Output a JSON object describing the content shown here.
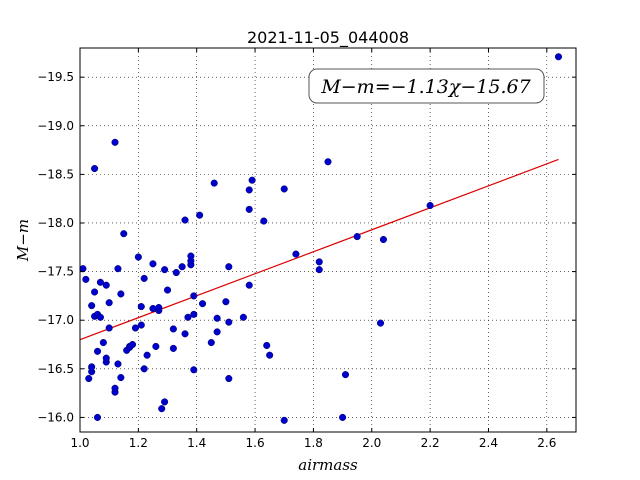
{
  "chart_data": {
    "type": "scatter",
    "title": "2021-11-05_044008",
    "xlabel": "airmass",
    "ylabel": "M−m",
    "xlim": [
      1.0,
      2.7
    ],
    "ylim": [
      -19.8,
      -15.85
    ],
    "y_inverted": true,
    "grid": true,
    "x_ticks": [
      "1.0",
      "1.2",
      "1.4",
      "1.6",
      "1.8",
      "2.0",
      "2.2",
      "2.4",
      "2.6"
    ],
    "y_ticks": [
      "−16.0",
      "−16.5",
      "−17.0",
      "−17.5",
      "−18.0",
      "−18.5",
      "−19.0",
      "−19.5"
    ],
    "annotation": "M−m=−1.13χ−15.67",
    "point_color": "#0000cc",
    "fit_color": "#dd0000",
    "fit_line": {
      "slope": -1.13,
      "intercept": -15.67,
      "x_range": [
        1.0,
        2.64
      ]
    },
    "points": [
      [
        1.01,
        -17.53
      ],
      [
        1.02,
        -17.42
      ],
      [
        1.03,
        -16.4
      ],
      [
        1.04,
        -16.47
      ],
      [
        1.04,
        -16.52
      ],
      [
        1.04,
        -17.15
      ],
      [
        1.05,
        -17.29
      ],
      [
        1.05,
        -17.04
      ],
      [
        1.05,
        -18.56
      ],
      [
        1.06,
        -17.06
      ],
      [
        1.06,
        -16.68
      ],
      [
        1.06,
        -16.0
      ],
      [
        1.07,
        -17.03
      ],
      [
        1.07,
        -17.39
      ],
      [
        1.08,
        -16.77
      ],
      [
        1.09,
        -16.57
      ],
      [
        1.09,
        -16.61
      ],
      [
        1.09,
        -17.36
      ],
      [
        1.1,
        -16.92
      ],
      [
        1.1,
        -17.18
      ],
      [
        1.12,
        -18.83
      ],
      [
        1.12,
        -16.26
      ],
      [
        1.12,
        -16.3
      ],
      [
        1.13,
        -16.55
      ],
      [
        1.13,
        -17.53
      ],
      [
        1.14,
        -16.41
      ],
      [
        1.14,
        -17.27
      ],
      [
        1.15,
        -17.89
      ],
      [
        1.16,
        -16.69
      ],
      [
        1.17,
        -16.73
      ],
      [
        1.17,
        -16.72
      ],
      [
        1.18,
        -16.75
      ],
      [
        1.19,
        -16.92
      ],
      [
        1.2,
        -17.65
      ],
      [
        1.21,
        -17.14
      ],
      [
        1.21,
        -16.95
      ],
      [
        1.22,
        -16.5
      ],
      [
        1.22,
        -17.43
      ],
      [
        1.23,
        -16.64
      ],
      [
        1.25,
        -17.58
      ],
      [
        1.25,
        -17.12
      ],
      [
        1.26,
        -16.73
      ],
      [
        1.27,
        -17.1
      ],
      [
        1.27,
        -17.13
      ],
      [
        1.28,
        -16.09
      ],
      [
        1.29,
        -17.52
      ],
      [
        1.29,
        -16.16
      ],
      [
        1.3,
        -17.31
      ],
      [
        1.32,
        -16.71
      ],
      [
        1.32,
        -16.91
      ],
      [
        1.33,
        -17.49
      ],
      [
        1.35,
        -17.55
      ],
      [
        1.36,
        -16.86
      ],
      [
        1.36,
        -18.03
      ],
      [
        1.37,
        -17.03
      ],
      [
        1.38,
        -17.57
      ],
      [
        1.38,
        -17.61
      ],
      [
        1.38,
        -17.66
      ],
      [
        1.39,
        -16.49
      ],
      [
        1.39,
        -17.06
      ],
      [
        1.39,
        -17.25
      ],
      [
        1.41,
        -18.08
      ],
      [
        1.42,
        -17.17
      ],
      [
        1.45,
        -16.77
      ],
      [
        1.46,
        -18.41
      ],
      [
        1.47,
        -16.88
      ],
      [
        1.47,
        -17.02
      ],
      [
        1.5,
        -17.19
      ],
      [
        1.51,
        -16.4
      ],
      [
        1.51,
        -16.98
      ],
      [
        1.51,
        -17.55
      ],
      [
        1.56,
        -17.03
      ],
      [
        1.58,
        -17.36
      ],
      [
        1.58,
        -18.14
      ],
      [
        1.58,
        -18.34
      ],
      [
        1.59,
        -18.44
      ],
      [
        1.63,
        -18.02
      ],
      [
        1.64,
        -16.74
      ],
      [
        1.65,
        -16.64
      ],
      [
        1.7,
        -15.97
      ],
      [
        1.7,
        -18.35
      ],
      [
        1.74,
        -17.68
      ],
      [
        1.82,
        -17.52
      ],
      [
        1.82,
        -17.6
      ],
      [
        1.85,
        -18.63
      ],
      [
        1.9,
        -16.0
      ],
      [
        1.91,
        -16.44
      ],
      [
        1.95,
        -17.86
      ],
      [
        2.03,
        -16.97
      ],
      [
        2.04,
        -17.83
      ],
      [
        2.2,
        -18.18
      ],
      [
        2.64,
        -19.71
      ]
    ]
  }
}
